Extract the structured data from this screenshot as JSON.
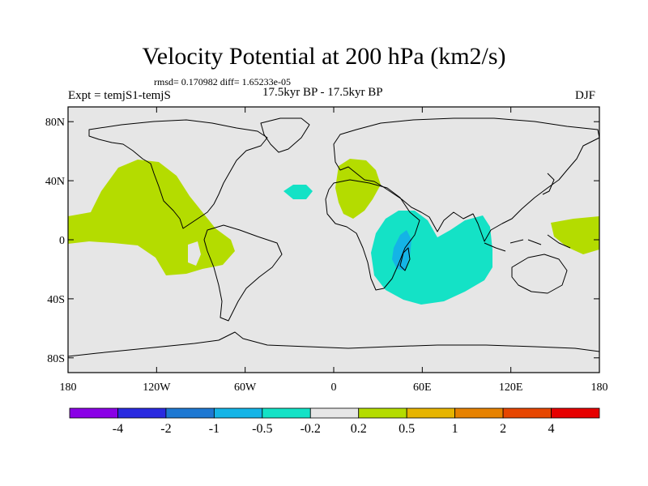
{
  "title": "Velocity Potential at 200 hPa (km2/s)",
  "stats_line": "rmsd= 0.170982 diff= 1.65233e-05",
  "experiment_label": "Expt = temjS1-temjS",
  "period_label": "17.5kyr BP - 17.5kyr BP",
  "season_label": "DJF",
  "map": {
    "projection": "cylindrical-equidistant",
    "lon_range": [
      -180,
      180
    ],
    "lat_range": [
      -90,
      90
    ],
    "lat_ticks": [
      {
        "value": 80,
        "label": "80N"
      },
      {
        "value": 40,
        "label": "40N"
      },
      {
        "value": 0,
        "label": "0"
      },
      {
        "value": -40,
        "label": "40S"
      },
      {
        "value": -80,
        "label": "80S"
      }
    ],
    "lon_ticks": [
      {
        "value": -180,
        "label": "180"
      },
      {
        "value": -120,
        "label": "120W"
      },
      {
        "value": -60,
        "label": "60W"
      },
      {
        "value": 0,
        "label": "0"
      },
      {
        "value": 60,
        "label": "60E"
      },
      {
        "value": 120,
        "label": "120E"
      },
      {
        "value": 180,
        "label": "180"
      }
    ],
    "background_color": "#e6e6e6",
    "coastline_color": "#000000"
  },
  "colorbar": {
    "colors": [
      "#8a00e6",
      "#2a2ae0",
      "#1e78d2",
      "#14b4e6",
      "#14e2c6",
      "#e6e6e6",
      "#b4dc00",
      "#e6b400",
      "#e68200",
      "#e64600",
      "#e60000"
    ],
    "labels": [
      "-4",
      "-2",
      "-1",
      "-0.5",
      "-0.2",
      "0.2",
      "0.5",
      "1",
      "2",
      "4"
    ]
  },
  "regions": [
    {
      "name": "east-pacific-positive",
      "level": "0.2 to 0.5",
      "color": "#b4dc00"
    },
    {
      "name": "europe-north-africa-positive",
      "level": "0.2 to 0.5",
      "color": "#b4dc00"
    },
    {
      "name": "west-pacific-positive",
      "level": "0.2 to 0.5",
      "color": "#b4dc00"
    },
    {
      "name": "indian-ocean-negative",
      "level": "-0.5 to -0.2",
      "color": "#14e2c6"
    },
    {
      "name": "north-atlantic-negative",
      "level": "-0.5 to -0.2",
      "color": "#14e2c6"
    },
    {
      "name": "madagascar-minimum",
      "level": "-1 to -0.5",
      "color": "#14b4e6"
    }
  ]
}
